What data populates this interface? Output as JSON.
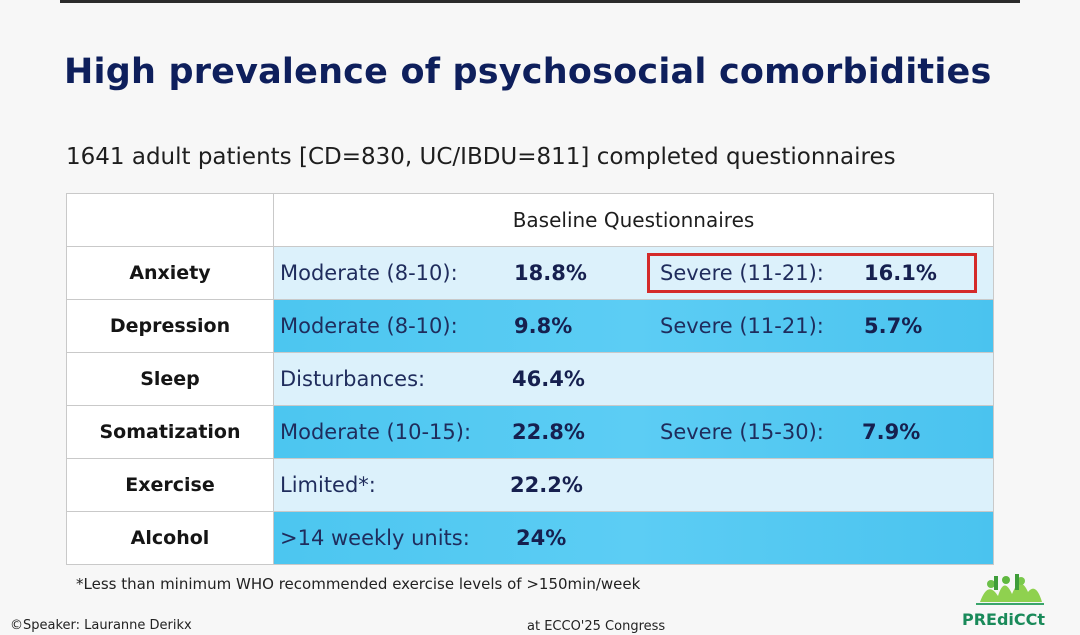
{
  "title": "High prevalence of psychosocial comorbidities",
  "subtitle": "1641 adult patients [CD=830, UC/IBDU=811] completed questionnaires",
  "table": {
    "header": "Baseline Questionnaires",
    "rows": [
      {
        "label": "Anxiety",
        "left_label": "Moderate (8-10):",
        "left_value": "18.8%",
        "right_label": "Severe (11-21):",
        "right_value": "16.1%",
        "highlighted": "Severe (11-21): 16.1%"
      },
      {
        "label": "Depression",
        "left_label": "Moderate (8-10):",
        "left_value": "9.8%",
        "right_label": "Severe (11-21):",
        "right_value": "5.7%"
      },
      {
        "label": "Sleep",
        "left_label": "Disturbances:",
        "left_value": "46.4%"
      },
      {
        "label": "Somatization",
        "left_label": "Moderate (10-15):",
        "left_value": "22.8%",
        "right_label": "Severe (15-30):",
        "right_value": "7.9%"
      },
      {
        "label": "Exercise",
        "left_label": "Limited*:",
        "left_value": "22.2%"
      },
      {
        "label": "Alcohol",
        "left_label": ">14 weekly units:",
        "left_value": "24%"
      }
    ]
  },
  "footnote": "*Less than minimum WHO recommended exercise levels of >150min/week",
  "speaker": "©Speaker: Lauranne Derikx",
  "congress": "at ECCO'25 Congress",
  "logo_text": "PREdiCCt",
  "colors": {
    "title": "#0e1f5c",
    "row_light": "#dcf1fb",
    "row_dark": "#4cc6f0",
    "highlight_border": "#d42a2a",
    "logo": "#1a8a5a"
  }
}
